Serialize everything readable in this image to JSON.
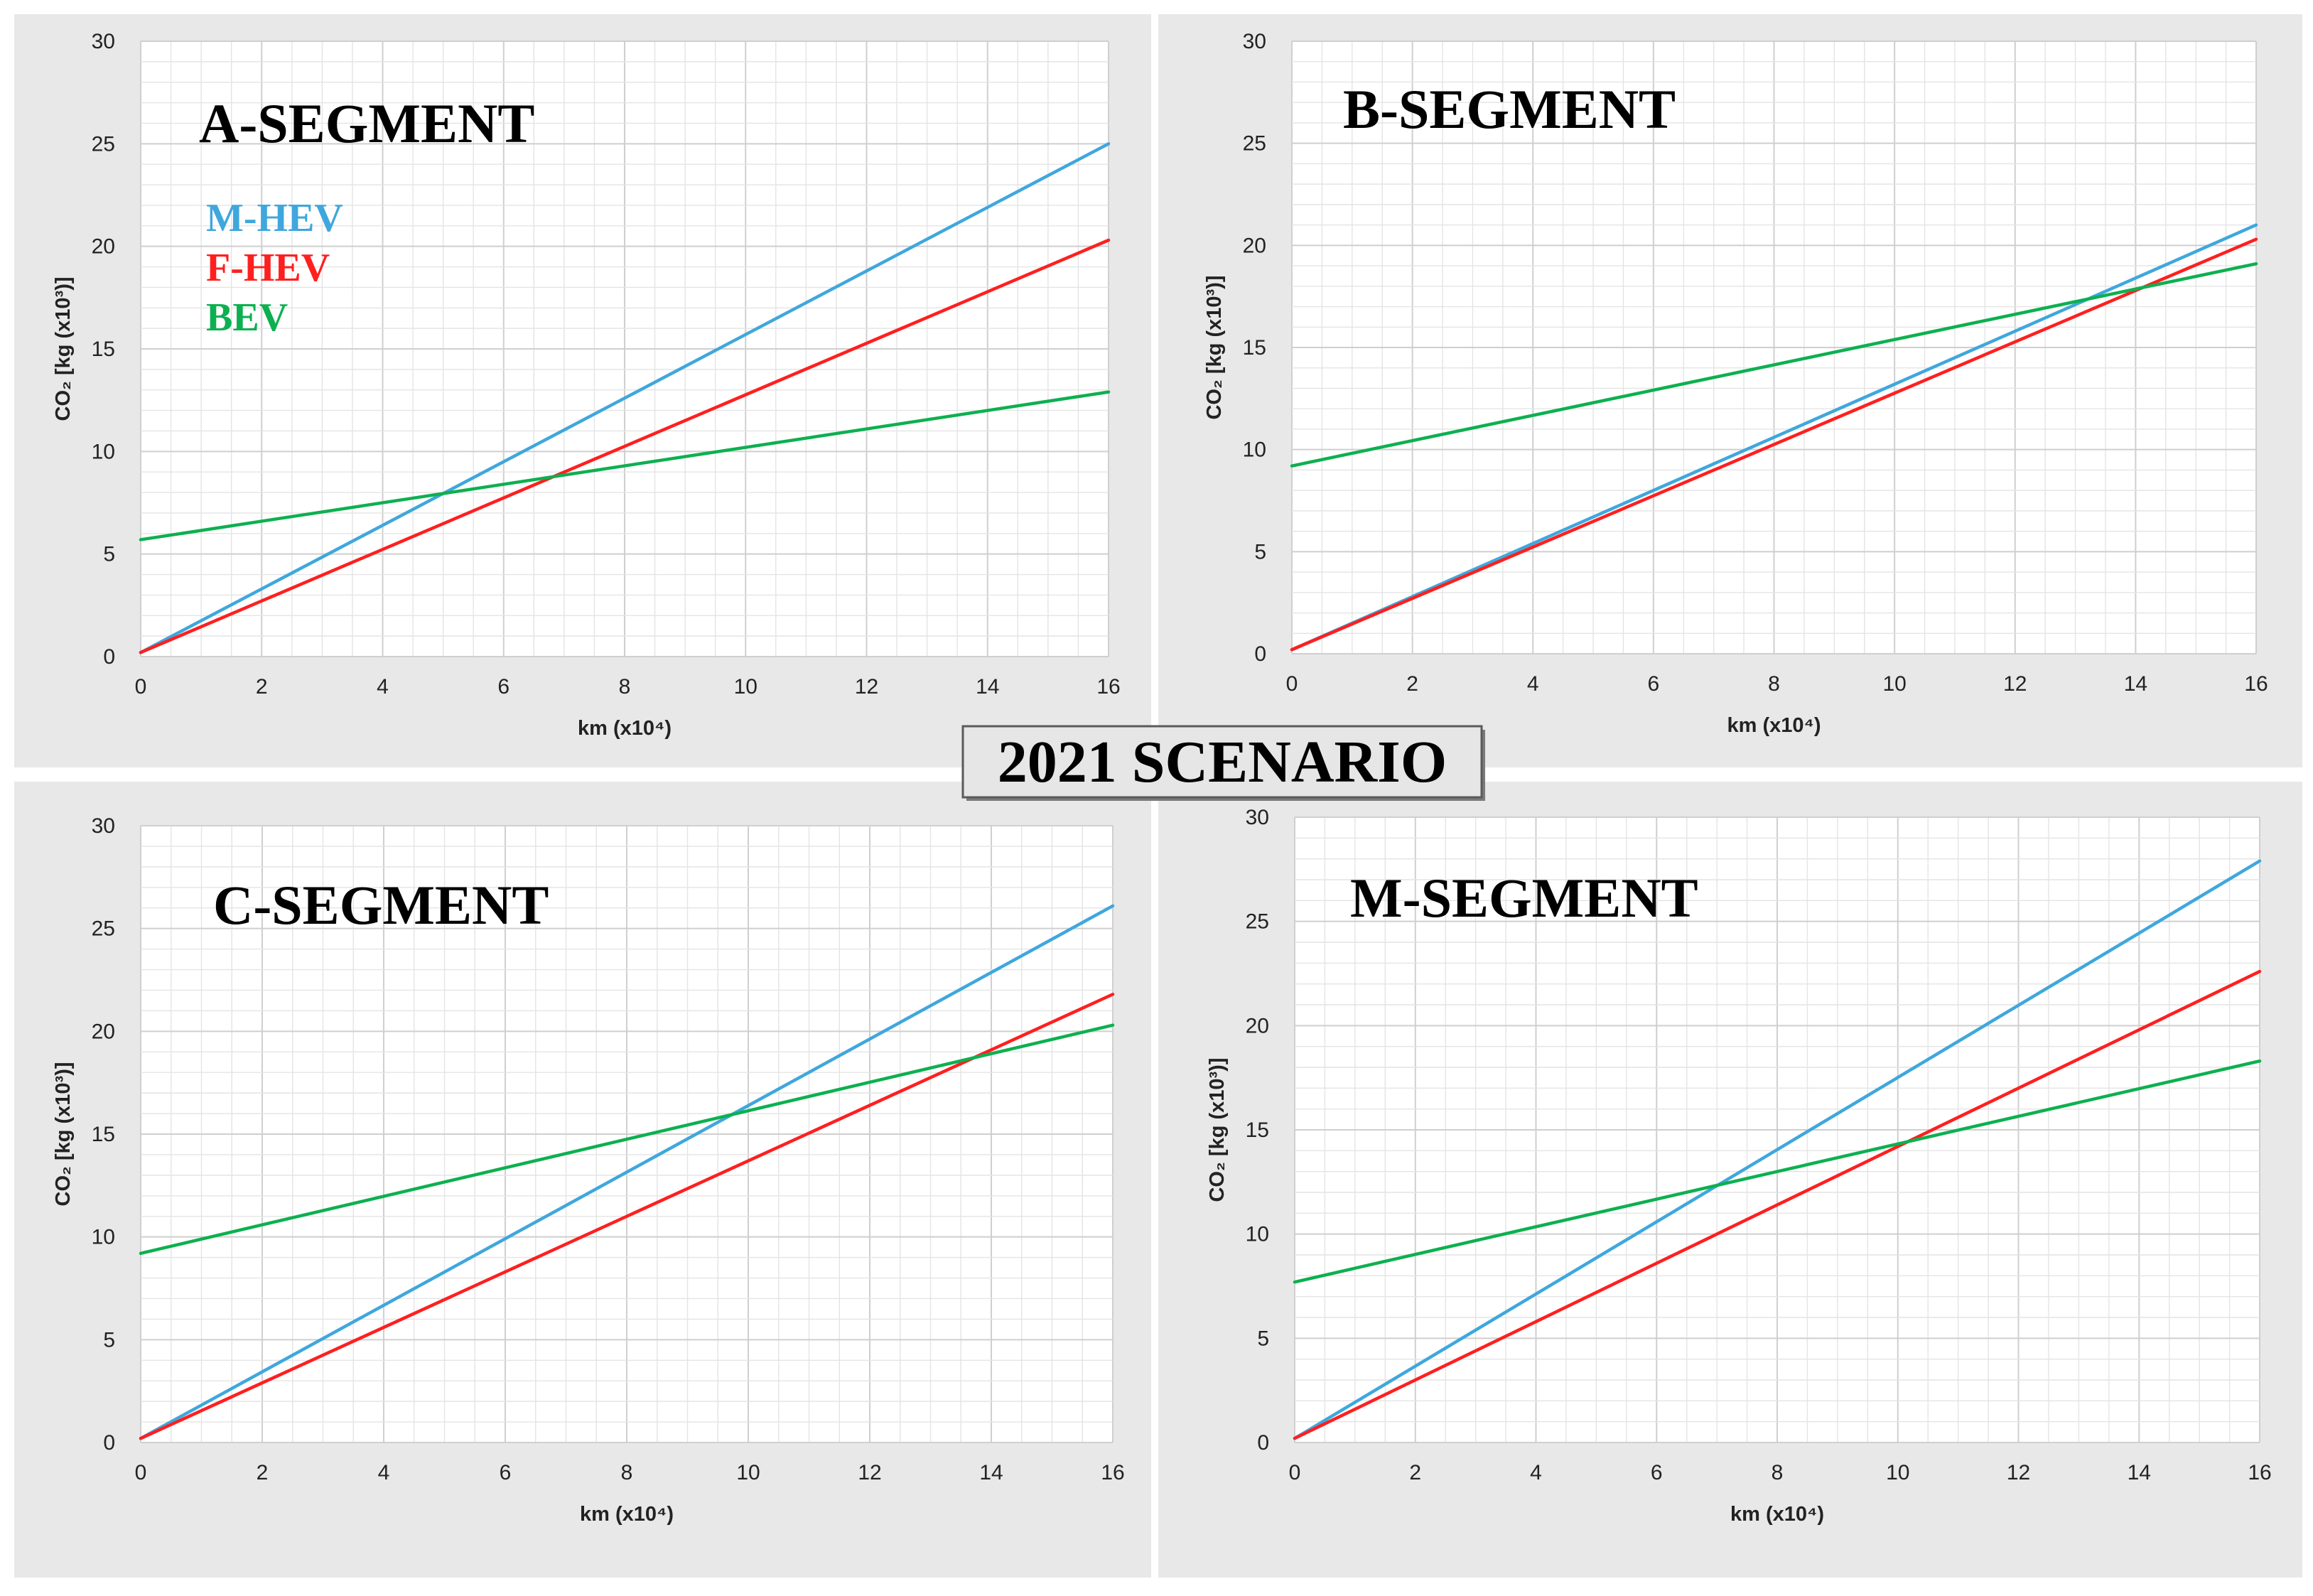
{
  "banner": "2021 SCENARIO",
  "colors": {
    "M-HEV": "#3fa7dd",
    "F-HEV": "#ff1f1f",
    "BEV": "#0db050",
    "panel_bg": "#e8e8e8",
    "plot_bg": "#ffffff",
    "grid": "#d9d9d9"
  },
  "chart_data": [
    {
      "type": "line",
      "title": "A-SEGMENT",
      "xlabel": "km (x10⁴)",
      "ylabel": "CO₂ [kg (x10³)]",
      "xlim": [
        0,
        16
      ],
      "ylim": [
        0,
        30
      ],
      "xticks": [
        0,
        2,
        4,
        6,
        8,
        10,
        12,
        14,
        16
      ],
      "yticks": [
        0,
        5,
        10,
        15,
        20,
        25,
        30
      ],
      "grid": true,
      "legend": "top-left",
      "x": [
        0,
        16
      ],
      "series": [
        {
          "name": "M-HEV",
          "values": [
            0.2,
            25.0
          ]
        },
        {
          "name": "F-HEV",
          "values": [
            0.2,
            20.3
          ]
        },
        {
          "name": "BEV",
          "values": [
            5.7,
            12.9
          ]
        }
      ]
    },
    {
      "type": "line",
      "title": "B-SEGMENT",
      "xlabel": "km (x10⁴)",
      "ylabel": "CO₂ [kg (x10³)]",
      "xlim": [
        0,
        16
      ],
      "ylim": [
        0,
        30
      ],
      "xticks": [
        0,
        2,
        4,
        6,
        8,
        10,
        12,
        14,
        16
      ],
      "yticks": [
        0,
        5,
        10,
        15,
        20,
        25,
        30
      ],
      "grid": true,
      "x": [
        0,
        16
      ],
      "series": [
        {
          "name": "M-HEV",
          "values": [
            0.2,
            21.0
          ]
        },
        {
          "name": "F-HEV",
          "values": [
            0.2,
            20.3
          ]
        },
        {
          "name": "BEV",
          "values": [
            9.2,
            19.1
          ]
        }
      ]
    },
    {
      "type": "line",
      "title": "C-SEGMENT",
      "xlabel": "km (x10⁴)",
      "ylabel": "CO₂ [kg (x10³)]",
      "xlim": [
        0,
        16
      ],
      "ylim": [
        0,
        30
      ],
      "xticks": [
        0,
        2,
        4,
        6,
        8,
        10,
        12,
        14,
        16
      ],
      "yticks": [
        0,
        5,
        10,
        15,
        20,
        25,
        30
      ],
      "grid": true,
      "x": [
        0,
        16
      ],
      "series": [
        {
          "name": "M-HEV",
          "values": [
            0.2,
            26.1
          ]
        },
        {
          "name": "F-HEV",
          "values": [
            0.2,
            21.8
          ]
        },
        {
          "name": "BEV",
          "values": [
            9.2,
            20.3
          ]
        }
      ]
    },
    {
      "type": "line",
      "title": "M-SEGMENT",
      "xlabel": "km (x10⁴)",
      "ylabel": "CO₂ [kg (x10³)]",
      "xlim": [
        0,
        16
      ],
      "ylim": [
        0,
        30
      ],
      "xticks": [
        0,
        2,
        4,
        6,
        8,
        10,
        12,
        14,
        16
      ],
      "yticks": [
        0,
        5,
        10,
        15,
        20,
        25,
        30
      ],
      "grid": true,
      "x": [
        0,
        16
      ],
      "series": [
        {
          "name": "M-HEV",
          "values": [
            0.2,
            27.9
          ]
        },
        {
          "name": "F-HEV",
          "values": [
            0.2,
            22.6
          ]
        },
        {
          "name": "BEV",
          "values": [
            7.7,
            18.3
          ]
        }
      ]
    }
  ]
}
